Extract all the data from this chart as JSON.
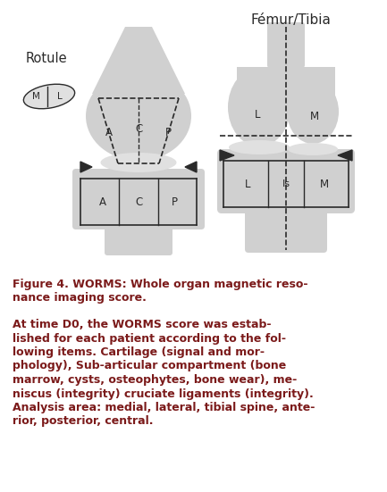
{
  "title_text": "Fémur/Tibia",
  "rotule_label": "Rotule",
  "caption_line1": "Figure 4. WORMS: Whole organ magnetic reso-",
  "caption_line2": "nance imaging score.",
  "body_lines": [
    "At time D0, the WORMS score was estab-",
    "lished for each patient according to the fol-",
    "lowing items. Cartilage (signal and mor-",
    "phology), Sub-articular compartment (bone",
    "marrow, cysts, osteophytes, bone wear), me-",
    "niscus (integrity) cruciate ligaments (integrity).",
    "Analysis area: medial, lateral, tibial spine, ante-",
    "rior, posterior, central."
  ],
  "bg_color": "#ffffff",
  "text_color": "#7b1a1a",
  "shape_color": "#d0d0d0",
  "shape_color2": "#e0e0e0",
  "dark_color": "#2a2a2a",
  "line_color": "#2a2a2a"
}
